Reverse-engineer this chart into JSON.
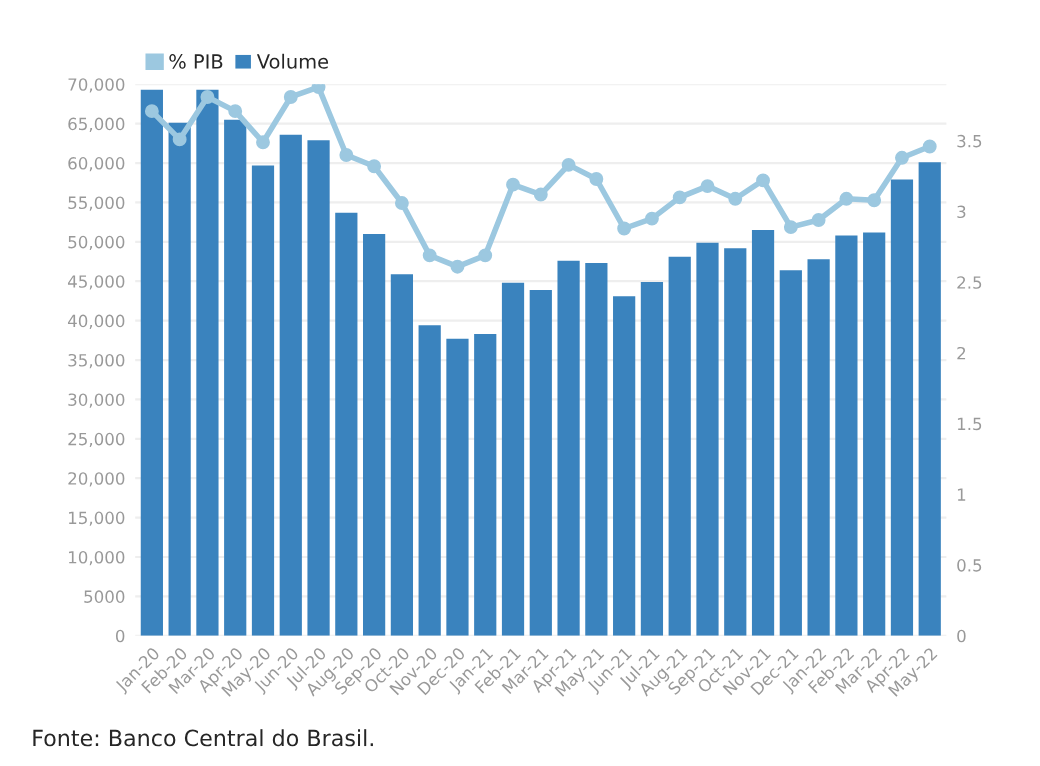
{
  "chart_data": {
    "type": "bar",
    "categories": [
      "Jan-20",
      "Feb-20",
      "Mar-20",
      "Apr-20",
      "May-20",
      "Jun-20",
      "Jul-20",
      "Aug-20",
      "Sep-20",
      "Oct-20",
      "Nov-20",
      "Dec-20",
      "Jan-21",
      "Feb-21",
      "Mar-21",
      "Apr-21",
      "May-21",
      "Jun-21",
      "Jul-21",
      "Aug-21",
      "Sep-21",
      "Oct-21",
      "Nov-21",
      "Dec-21",
      "Jan-22",
      "Feb-22",
      "Mar-22",
      "Apr-22",
      "May-22"
    ],
    "series": [
      {
        "name": "% PIB",
        "type": "line",
        "axis": "y2",
        "color": "#9cc8e0",
        "marker": "circle",
        "values": [
          3.71,
          3.51,
          3.81,
          3.71,
          3.49,
          3.81,
          3.88,
          3.4,
          3.32,
          3.06,
          2.69,
          2.61,
          2.69,
          3.19,
          3.12,
          3.33,
          3.23,
          2.88,
          2.95,
          3.1,
          3.18,
          3.09,
          3.22,
          2.89,
          2.94,
          3.09,
          3.08,
          3.38,
          3.46
        ]
      },
      {
        "name": "Volume",
        "type": "bar",
        "color": "#3a83be",
        "values": [
          69300,
          65100,
          69300,
          65500,
          59700,
          63600,
          62900,
          53700,
          51000,
          45900,
          39400,
          37700,
          38300,
          44800,
          43900,
          47600,
          47300,
          43100,
          44900,
          48100,
          49900,
          49200,
          51500,
          46400,
          47800,
          50800,
          51200,
          57900,
          60100
        ]
      }
    ],
    "ylim": [
      0,
      70000
    ],
    "yticks": [
      0,
      {
        "value": 5000,
        "label": "5000"
      },
      {
        "value": 10000,
        "label": "10,000"
      },
      {
        "value": 15000,
        "label": "15,000"
      },
      {
        "value": 20000,
        "label": "20,000"
      },
      {
        "value": 25000,
        "label": "25,000"
      },
      {
        "value": 30000,
        "label": "30,000"
      },
      {
        "value": 35000,
        "label": "35,000"
      },
      {
        "value": 40000,
        "label": "40,000"
      },
      {
        "value": 45000,
        "label": "45,000"
      },
      {
        "value": 50000,
        "label": "50,000"
      },
      {
        "value": 55000,
        "label": "55,000"
      },
      {
        "value": 60000,
        "label": "60,000"
      },
      {
        "value": 65000,
        "label": "65,000"
      },
      {
        "value": 70000,
        "label": "70,000"
      }
    ],
    "y2lim": [
      0,
      3.9
    ],
    "y2ticks": [
      0,
      0.5,
      1,
      1.5,
      2,
      2.5,
      3,
      3.5
    ],
    "grid": "y",
    "legend": "top left",
    "annotations": [
      "Fonte: Banco Central do Brasil."
    ]
  }
}
